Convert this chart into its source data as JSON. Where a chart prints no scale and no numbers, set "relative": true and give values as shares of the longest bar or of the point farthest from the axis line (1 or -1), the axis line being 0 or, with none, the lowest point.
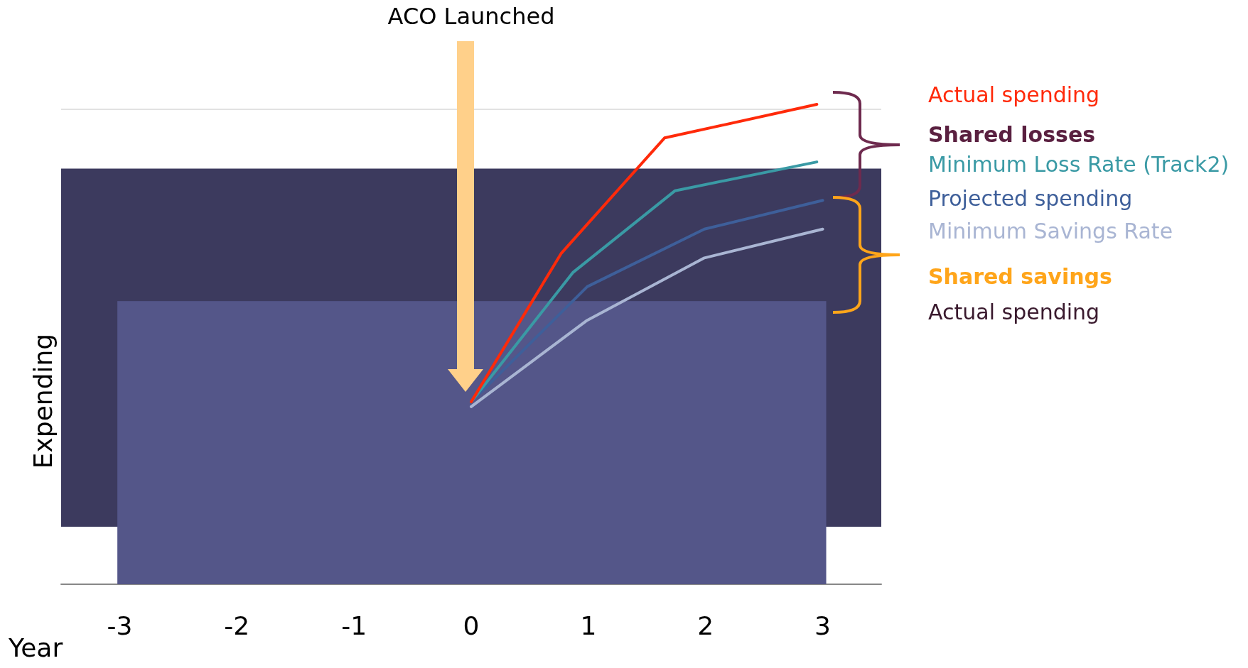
{
  "chart_data": {
    "type": "line",
    "relative": true,
    "xlabel": "Year",
    "ylabel": "Expending",
    "xlim": [
      -3.5,
      3.5
    ],
    "xticks": [
      -3,
      -2,
      -1,
      0,
      1,
      2,
      3
    ],
    "legend": "right",
    "marker": "none",
    "line_style": "solid",
    "grid": false,
    "series": [
      {
        "name": "Actual spending",
        "color": "#ff2a0a",
        "x": [
          0,
          0.77,
          1.65,
          2.95
        ],
        "values": [
          0.38,
          0.69,
          0.93,
          1
        ]
      },
      {
        "name": "Minimum Loss Rate (Track2)",
        "color": "#3a9aa5",
        "x": [
          0,
          0.87,
          1.74,
          2.95
        ],
        "values": [
          0.38,
          0.65,
          0.82,
          0.88
        ]
      },
      {
        "name": "Projected spending",
        "color": "#3e5f9a",
        "x": [
          0,
          0.99,
          1.99,
          3
        ],
        "values": [
          0.38,
          0.62,
          0.74,
          0.8
        ]
      },
      {
        "name": "Minimum Savings Rate",
        "color": "#a9b5d3",
        "x": [
          0,
          0.99,
          1.99,
          3
        ],
        "values": [
          0.37,
          0.55,
          0.68,
          0.74
        ]
      }
    ],
    "ref_lines": [
      {
        "axis": "y",
        "value": 0.99,
        "color": "#d9d9d9"
      }
    ],
    "bands": [
      {
        "axis": "y",
        "from": 0.12,
        "to": 0.866,
        "color": "#3c3a5e"
      }
    ],
    "annotations": [
      "ACO Launched",
      "Shared losses",
      "Shared savings",
      "Actual spending"
    ]
  }
}
